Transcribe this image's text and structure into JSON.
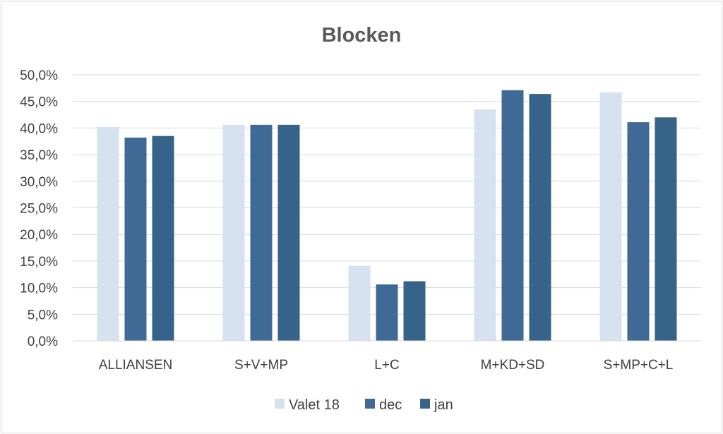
{
  "chart_data": {
    "type": "bar",
    "title": "Blocken",
    "categories": [
      "ALLIANSEN",
      "S+V+MP",
      "L+C",
      "M+KD+SD",
      "S+MP+C+L"
    ],
    "series": [
      {
        "name": "Valet 18",
        "color": "#d6e2f0",
        "values": [
          40.2,
          40.6,
          14.1,
          43.5,
          46.7
        ]
      },
      {
        "name": "dec",
        "color": "#3e6a95",
        "values": [
          38.2,
          40.6,
          10.6,
          47.1,
          41.1
        ]
      },
      {
        "name": "jan",
        "color": "#366389",
        "values": [
          38.5,
          40.6,
          11.2,
          46.4,
          42.0
        ]
      }
    ],
    "yticks": [
      "0,0%",
      "5,0%",
      "10,0%",
      "15,0%",
      "20,0%",
      "25,0%",
      "30,0%",
      "35,0%",
      "40,0%",
      "45,0%",
      "50,0%"
    ],
    "ylim": [
      0,
      50
    ],
    "grid": true,
    "legend_position": "bottom"
  }
}
